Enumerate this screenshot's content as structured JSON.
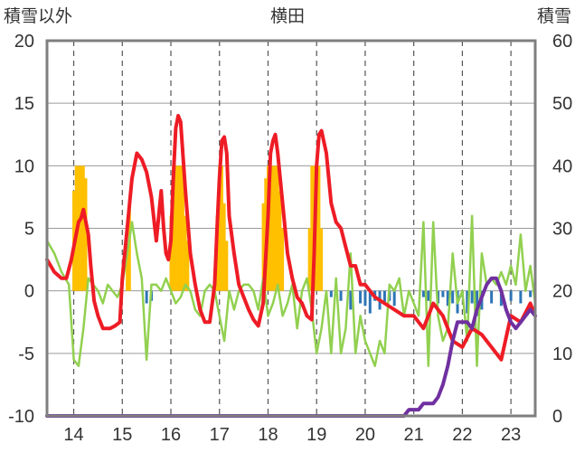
{
  "chart_data": {
    "type": "combo",
    "title": "横田",
    "left_axis_label": "積雪以外",
    "right_axis_label": "積雪",
    "y_left_ticks": [
      "20",
      "15",
      "10",
      "5",
      "0",
      "-5",
      "-10"
    ],
    "y_right_ticks": [
      "60",
      "50",
      "40",
      "30",
      "20",
      "10",
      "0"
    ],
    "x_ticks": [
      "14",
      "15",
      "16",
      "17",
      "18",
      "19",
      "20",
      "21",
      "22",
      "23"
    ],
    "ylim_left": [
      -10,
      20
    ],
    "ylim_right": [
      0,
      60
    ],
    "xlim": [
      13.45,
      23.5
    ],
    "grid": true,
    "colors": {
      "red": "#ee1c25",
      "green": "#92d050",
      "purple": "#7030a0",
      "orange": "#ffc000",
      "blue": "#2e75b6",
      "frame": "#7f7f7f"
    },
    "series": [
      {
        "color": "red",
        "x": [
          13.45,
          13.6,
          13.75,
          13.85,
          13.95,
          14.05,
          14.1,
          14.15,
          14.2,
          14.3,
          14.35,
          14.42,
          14.5,
          14.6,
          14.75,
          14.85,
          14.95,
          15.0,
          15.1,
          15.2,
          15.3,
          15.4,
          15.5,
          15.6,
          15.7,
          15.8,
          15.85,
          15.9,
          15.95,
          16.0,
          16.05,
          16.1,
          16.15,
          16.2,
          16.3,
          16.4,
          16.5,
          16.6,
          16.7,
          16.8,
          16.9,
          16.95,
          17.0,
          17.05,
          17.1,
          17.15,
          17.2,
          17.3,
          17.4,
          17.5,
          17.6,
          17.7,
          17.8,
          17.9,
          18.0,
          18.05,
          18.1,
          18.15,
          18.2,
          18.3,
          18.4,
          18.5,
          18.6,
          18.7,
          18.8,
          18.9,
          18.95,
          19.0,
          19.05,
          19.1,
          19.2,
          19.3,
          19.4,
          19.5,
          19.6,
          19.7,
          19.8,
          19.9,
          20.0,
          20.2,
          20.4,
          20.6,
          20.8,
          21.0,
          21.2,
          21.4,
          21.6,
          21.8,
          22.0,
          22.2,
          22.4,
          22.6,
          22.8,
          23.0,
          23.2,
          23.4,
          23.5
        ],
        "y": [
          2.5,
          1.5,
          1.0,
          1.0,
          2.5,
          4.5,
          5.5,
          5.8,
          6.5,
          4.5,
          2.0,
          -0.8,
          -2.0,
          -3.0,
          -3.0,
          -2.8,
          -2.5,
          1.0,
          5.0,
          9.0,
          11.0,
          10.5,
          9.5,
          7.5,
          4.0,
          8.0,
          5.0,
          3.0,
          2.5,
          4.0,
          9.0,
          13.0,
          14.0,
          13.5,
          8.0,
          3.0,
          0.5,
          -1.5,
          -2.5,
          -2.5,
          0.5,
          5.0,
          9.0,
          12.0,
          12.3,
          11.0,
          6.0,
          3.0,
          0.5,
          -0.5,
          -1.5,
          -2.3,
          -2.8,
          -1.0,
          6.0,
          11.0,
          12.0,
          12.5,
          11.0,
          7.0,
          3.0,
          1.0,
          -0.5,
          -1.0,
          -2.0,
          -2.3,
          3.0,
          10.0,
          12.5,
          12.8,
          11.0,
          7.0,
          5.5,
          5.0,
          3.5,
          2.0,
          2.0,
          0.5,
          0.5,
          -0.5,
          -1.0,
          -1.5,
          -2.0,
          -2.0,
          -3.0,
          -1.0,
          -2.0,
          -4.0,
          -4.5,
          -3.0,
          -3.5,
          -4.5,
          -5.5,
          -2.0,
          -2.5,
          -1.0,
          -2.0
        ]
      },
      {
        "color": "green",
        "x": [
          13.45,
          13.6,
          13.75,
          13.9,
          14.0,
          14.1,
          14.2,
          14.3,
          14.4,
          14.5,
          14.6,
          14.7,
          14.8,
          14.9,
          15.0,
          15.1,
          15.2,
          15.3,
          15.4,
          15.5,
          15.6,
          15.7,
          15.8,
          15.9,
          16.0,
          16.1,
          16.2,
          16.3,
          16.4,
          16.5,
          16.6,
          16.7,
          16.8,
          16.9,
          17.0,
          17.1,
          17.2,
          17.3,
          17.4,
          17.5,
          17.6,
          17.7,
          17.8,
          17.9,
          18.0,
          18.1,
          18.2,
          18.3,
          18.4,
          18.5,
          18.6,
          18.7,
          18.8,
          18.9,
          19.0,
          19.1,
          19.2,
          19.3,
          19.4,
          19.5,
          19.6,
          19.7,
          19.8,
          19.9,
          20.0,
          20.1,
          20.2,
          20.3,
          20.4,
          20.5,
          20.6,
          20.7,
          20.8,
          20.9,
          21.0,
          21.1,
          21.2,
          21.3,
          21.4,
          21.5,
          21.6,
          21.7,
          21.8,
          21.9,
          22.0,
          22.1,
          22.2,
          22.3,
          22.4,
          22.5,
          22.6,
          22.7,
          22.8,
          22.9,
          23.0,
          23.1,
          23.2,
          23.3,
          23.4,
          23.5
        ],
        "y": [
          4.0,
          3.0,
          1.5,
          0.5,
          -5.5,
          -6.0,
          -3.0,
          1.0,
          0.5,
          0.0,
          -1.0,
          0.5,
          0.0,
          -0.5,
          0.5,
          3.0,
          5.5,
          3.0,
          1.0,
          -5.5,
          0.5,
          0.5,
          0.0,
          1.0,
          0.0,
          -1.0,
          -0.5,
          0.5,
          0.0,
          -1.5,
          -2.0,
          0.0,
          0.5,
          0.0,
          -2.0,
          -4.0,
          0.0,
          -1.5,
          0.0,
          0.5,
          0.5,
          0.0,
          -1.5,
          1.0,
          -2.0,
          -1.0,
          0.5,
          -2.0,
          -1.0,
          0.5,
          -3.0,
          0.0,
          1.0,
          -1.5,
          -5.0,
          -3.0,
          0.0,
          -5.0,
          1.0,
          -5.0,
          -3.0,
          3.0,
          -5.0,
          -2.0,
          -4.0,
          -5.0,
          -6.0,
          -4.0,
          -5.0,
          0.5,
          0.0,
          1.0,
          -2.0,
          0.0,
          -1.0,
          -2.0,
          5.5,
          -6.0,
          5.5,
          -2.0,
          -4.0,
          -3.0,
          3.0,
          -1.0,
          0.0,
          -4.0,
          6.0,
          -6.0,
          3.0,
          0.5,
          1.0,
          0.5,
          1.5,
          0.5,
          2.0,
          0.5,
          4.5,
          0.0,
          2.0,
          -1.0
        ]
      },
      {
        "color": "purple",
        "axis": "right",
        "x": [
          13.45,
          20.6,
          20.8,
          20.9,
          21.0,
          21.1,
          21.2,
          21.4,
          21.5,
          21.6,
          21.7,
          21.8,
          21.9,
          22.0,
          22.1,
          22.2,
          22.3,
          22.4,
          22.5,
          22.6,
          22.7,
          22.8,
          22.9,
          23.0,
          23.1,
          23.2,
          23.3,
          23.4,
          23.5
        ],
        "y": [
          0,
          0,
          0,
          1,
          1,
          1,
          2,
          2,
          3,
          5,
          8,
          12,
          15,
          15,
          15,
          14,
          17,
          19,
          21,
          22,
          22,
          20,
          17,
          15,
          14,
          15,
          16,
          17,
          16
        ]
      }
    ],
    "bars_orange": {
      "axis": "left",
      "x": [
        14.0,
        14.05,
        14.1,
        14.15,
        14.2,
        14.25,
        15.1,
        15.15,
        16.0,
        16.05,
        16.1,
        16.15,
        16.2,
        16.25,
        16.3,
        16.35,
        16.95,
        17.0,
        17.05,
        17.1,
        17.15,
        17.9,
        17.95,
        18.0,
        18.05,
        18.1,
        18.15,
        18.2,
        18.25,
        18.3,
        18.85,
        18.9,
        18.95,
        19.0,
        19.05,
        19.1
      ],
      "y": [
        8,
        10,
        10,
        10,
        10,
        9,
        3,
        7,
        6,
        10,
        10,
        10,
        10,
        10,
        6,
        4,
        6,
        10,
        10,
        7,
        4,
        7,
        9,
        10,
        10,
        10,
        10,
        10,
        8,
        5,
        5,
        10,
        10,
        10,
        10,
        5
      ]
    },
    "bars_blue": {
      "axis": "left",
      "x": [
        15.5,
        15.6,
        19.3,
        19.5,
        19.7,
        19.9,
        20.0,
        20.1,
        20.2,
        20.3,
        20.4,
        20.5,
        20.6,
        21.2,
        21.3,
        21.5,
        21.6,
        21.7,
        21.8,
        21.9,
        22.0,
        22.1,
        22.2,
        22.3,
        22.4,
        22.6,
        22.8,
        23.0,
        23.2,
        23.4
      ],
      "y": [
        -1.0,
        -0.8,
        -0.5,
        -0.8,
        -1.5,
        -1.0,
        -1.2,
        -1.8,
        -0.8,
        -1.5,
        -1.0,
        -0.8,
        -1.2,
        -0.5,
        -0.8,
        -1.0,
        -0.5,
        -1.2,
        -1.0,
        -1.8,
        -0.5,
        -1.8,
        -1.0,
        -2.0,
        -1.5,
        -1.0,
        -1.2,
        -0.8,
        -1.0,
        -0.5
      ]
    }
  }
}
